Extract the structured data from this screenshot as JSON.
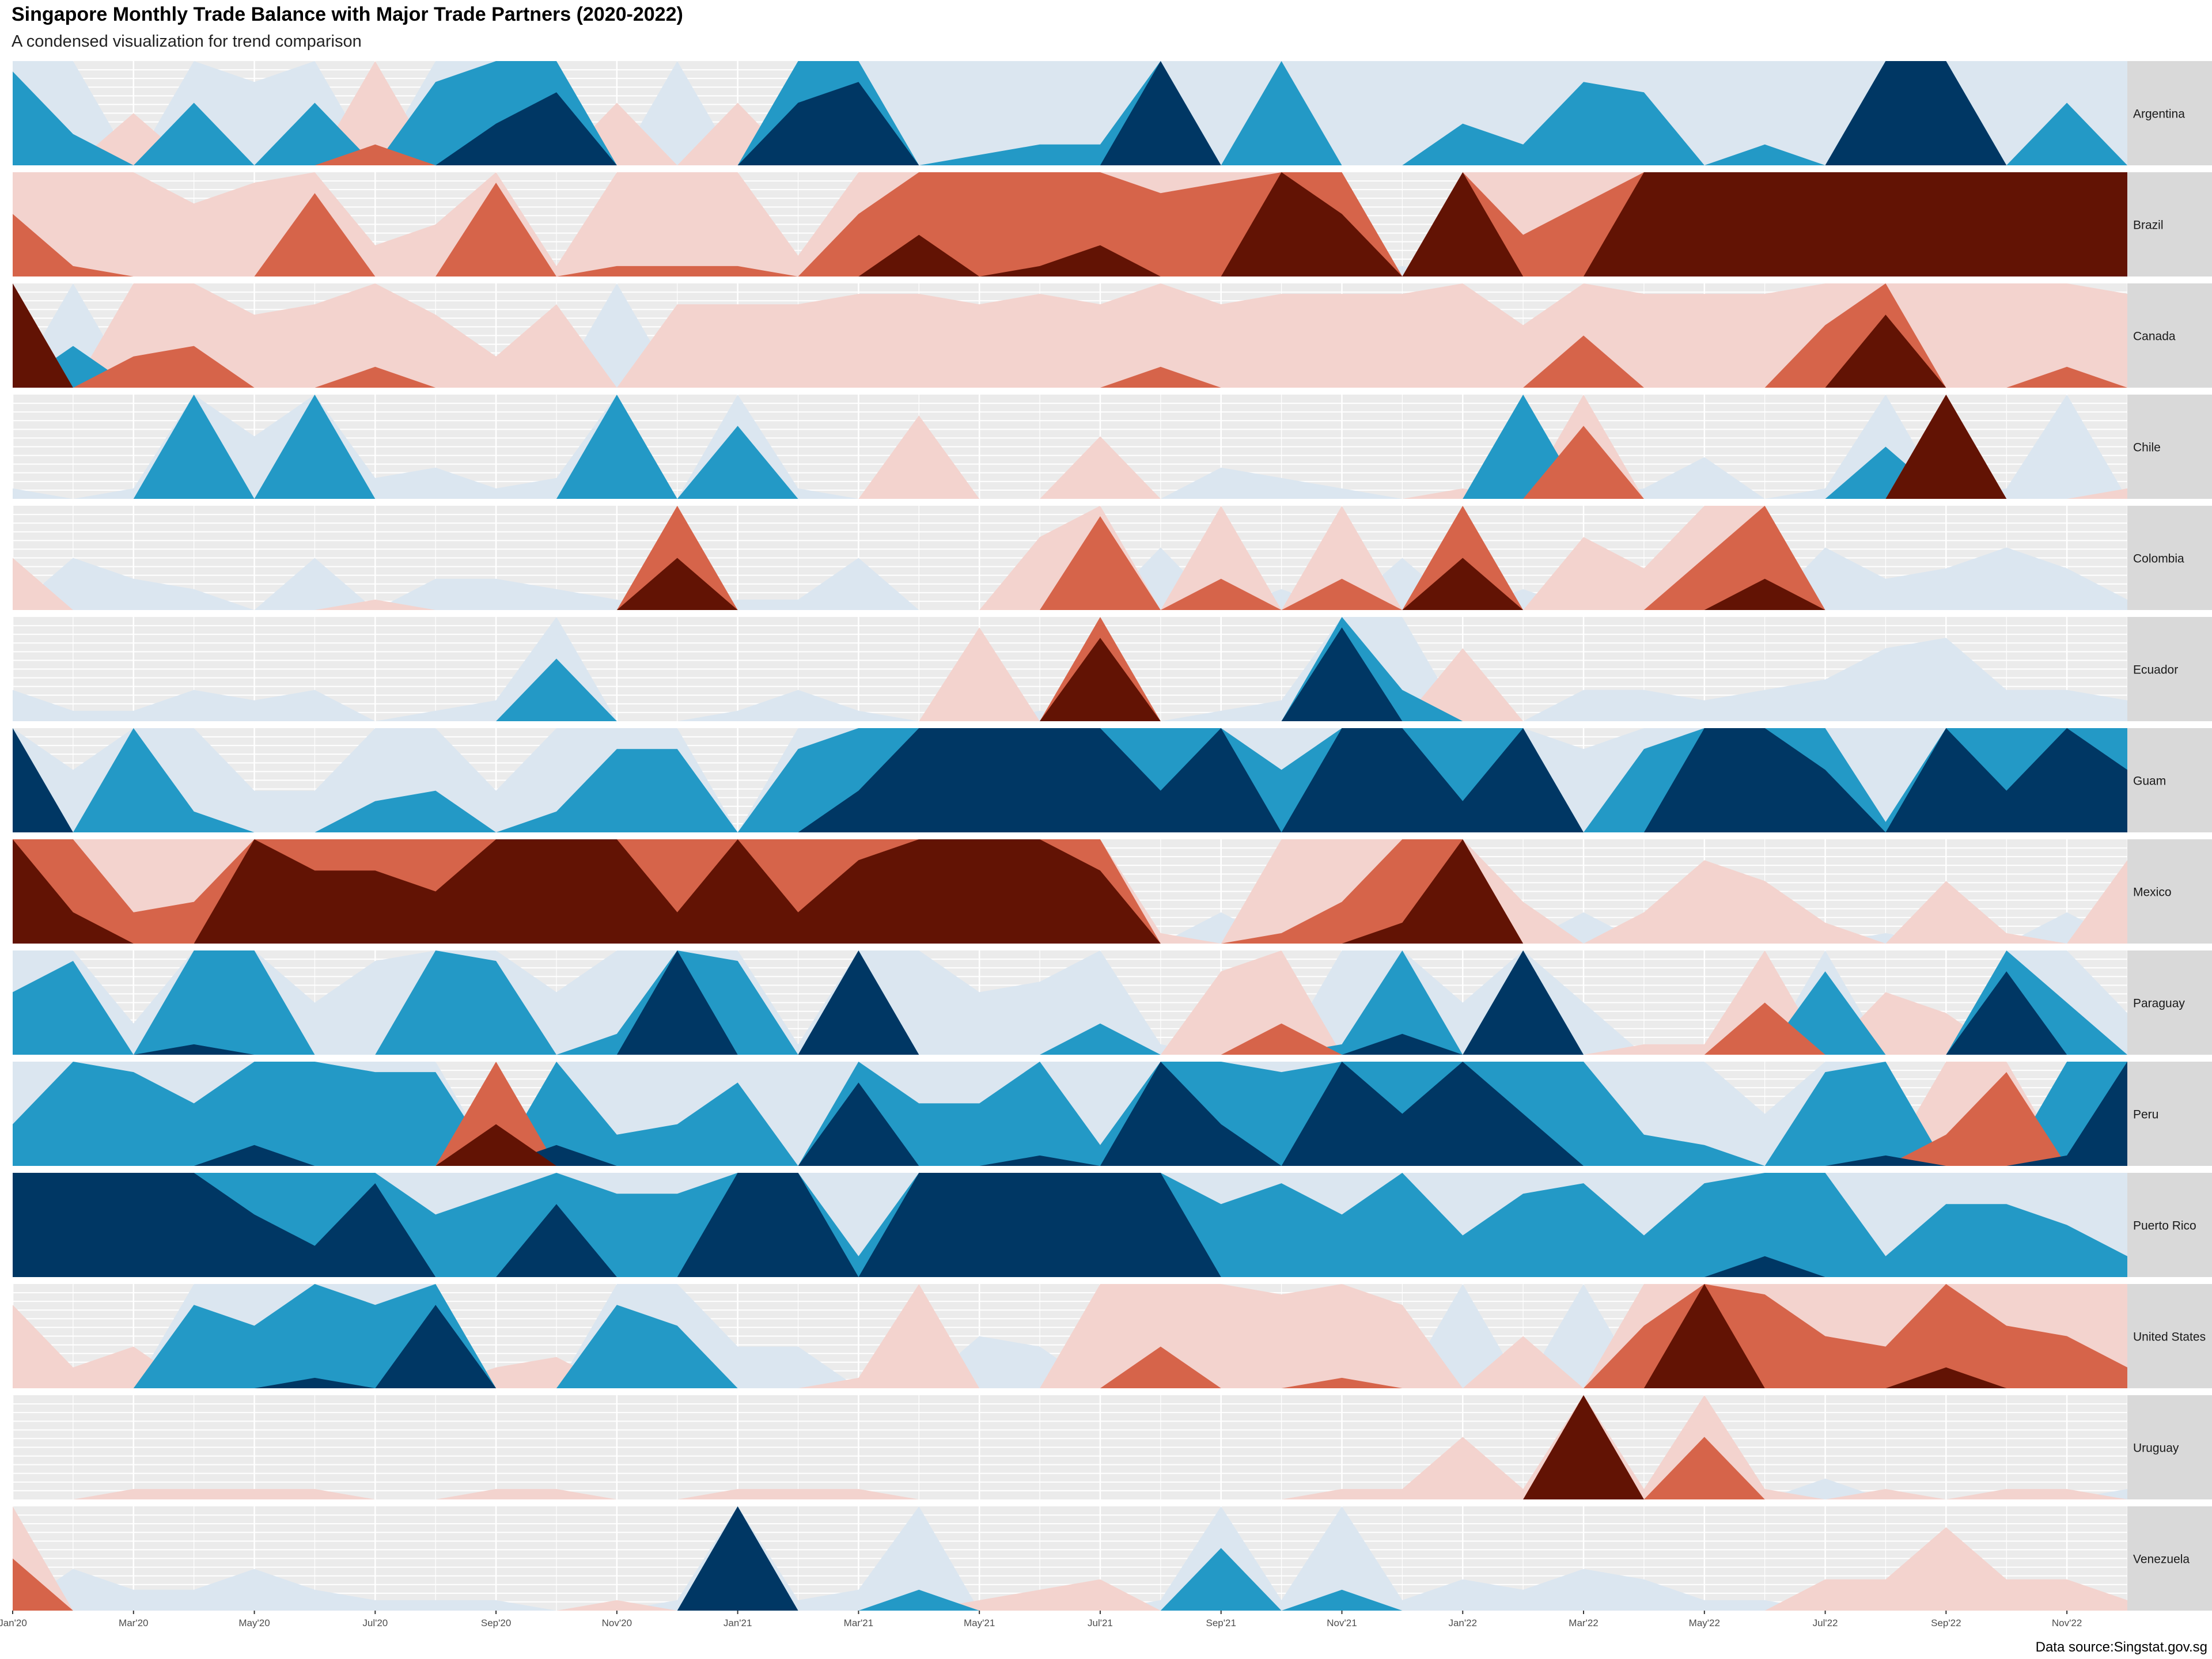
{
  "chart_data": {
    "type": "area",
    "title": "Singapore Monthly Trade Balance with Major Trade Partners (2020-2022)",
    "subtitle": "A condensed visualization for trend comparison",
    "caption": "Data source:Singstat.gov.sg",
    "chart_style": "horizon",
    "horizon_bands": 3,
    "horizon_band_size": 1,
    "colors": {
      "positive": [
        "#dbe6f0",
        "#2399c6",
        "#003764"
      ],
      "negative": [
        "#f3d3ce",
        "#d6644a",
        "#621304"
      ],
      "panel_bg": "#ebebeb",
      "grid": "#ffffff",
      "strip_bg": "#d9d9d9"
    },
    "x_ticks": [
      "Jan'20",
      "Mar'20",
      "May'20",
      "Jul'20",
      "Sep'20",
      "Nov'20",
      "Jan'21",
      "Mar'21",
      "May'21",
      "Jul'21",
      "Sep'21",
      "Nov'21",
      "Jan'22",
      "Mar'22",
      "May'22",
      "Jul'22",
      "Sep'22",
      "Nov'22"
    ],
    "months": [
      "2020-01",
      "2020-02",
      "2020-03",
      "2020-04",
      "2020-05",
      "2020-06",
      "2020-07",
      "2020-08",
      "2020-09",
      "2020-10",
      "2020-11",
      "2020-12",
      "2021-01",
      "2021-02",
      "2021-03",
      "2021-04",
      "2021-05",
      "2021-06",
      "2021-07",
      "2021-08",
      "2021-09",
      "2021-10",
      "2021-11",
      "2021-12",
      "2022-01",
      "2022-02",
      "2022-03",
      "2022-04",
      "2022-05",
      "2022-06",
      "2022-07",
      "2022-08",
      "2022-09",
      "2022-10",
      "2022-11",
      "2022-12"
    ],
    "series": [
      {
        "name": "Argentina",
        "values": [
          1.9,
          1.3,
          -0.5,
          1.6,
          0.8,
          1.6,
          -1.2,
          1.8,
          2.4,
          2.7,
          -0.6,
          1.0,
          -0.6,
          2.6,
          2.8,
          1.0,
          1.1,
          1.2,
          1.2,
          3.0,
          1.0,
          2.0,
          1.0,
          1.0,
          1.4,
          1.2,
          1.8,
          1.7,
          1.0,
          1.2,
          1.0,
          3.0,
          3.0,
          1.0,
          1.6,
          1.0
        ]
      },
      {
        "name": "Brazil",
        "values": [
          -1.6,
          -1.1,
          -1.0,
          -0.7,
          -0.9,
          -1.8,
          -0.3,
          -0.5,
          -1.9,
          -0.1,
          -1.1,
          -1.1,
          -1.1,
          -0.2,
          -1.6,
          -2.4,
          -2.0,
          -2.1,
          -2.3,
          -1.8,
          -1.9,
          -3.0,
          -2.6,
          0.1,
          -3.0,
          -1.4,
          -1.7,
          -3.0,
          -3.0,
          -3.0,
          -3.0,
          -3.0,
          -3.0,
          -3.0,
          -3.0,
          -3.0
        ]
      },
      {
        "name": "Canada",
        "values": [
          -3.0,
          1.4,
          -1.3,
          -1.4,
          -0.7,
          -0.8,
          -1.2,
          -0.7,
          -0.3,
          -0.8,
          1.0,
          -0.8,
          -0.8,
          -0.8,
          -0.9,
          -0.9,
          -0.8,
          -0.9,
          -0.8,
          -1.2,
          -0.8,
          -0.9,
          -0.9,
          -0.9,
          -1.0,
          -0.6,
          -1.5,
          -0.9,
          -0.9,
          -0.9,
          -1.6,
          -2.7,
          -1.0,
          -1.0,
          -1.2,
          -0.9
        ]
      },
      {
        "name": "Chile",
        "values": [
          0.1,
          0.0,
          0.1,
          2.0,
          0.6,
          2.0,
          0.2,
          0.3,
          0.1,
          0.2,
          2.0,
          0.0,
          1.7,
          0.1,
          0.0,
          -0.8,
          0.0,
          0.0,
          -0.6,
          0.0,
          0.3,
          0.2,
          0.1,
          0.0,
          -0.1,
          2.0,
          -1.7,
          0.1,
          0.4,
          0.0,
          0.1,
          1.5,
          -3.0,
          0.1,
          1.0,
          -0.1
        ]
      },
      {
        "name": "Colombia",
        "values": [
          -0.5,
          0.5,
          0.3,
          0.2,
          0.0,
          0.5,
          -0.1,
          0.3,
          0.3,
          0.2,
          0.1,
          -2.5,
          0.1,
          0.1,
          0.5,
          0.0,
          0.0,
          -0.7,
          -1.9,
          0.6,
          -1.3,
          0.2,
          -1.3,
          0.5,
          -2.5,
          0.2,
          -0.7,
          -0.4,
          -1.5,
          -2.3,
          0.6,
          0.3,
          0.4,
          0.6,
          0.4,
          0.1
        ]
      },
      {
        "name": "Ecuador",
        "values": [
          0.3,
          0.1,
          0.1,
          0.3,
          0.2,
          0.3,
          0.0,
          0.1,
          0.2,
          1.6,
          0.0,
          0.0,
          0.1,
          0.3,
          0.1,
          0.0,
          -0.9,
          0.1,
          -2.8,
          0.0,
          0.1,
          0.2,
          2.9,
          1.3,
          -0.7,
          0.0,
          0.3,
          0.3,
          0.2,
          0.3,
          0.4,
          0.7,
          0.8,
          0.3,
          0.3,
          0.2
        ]
      },
      {
        "name": "Guam",
        "values": [
          3.0,
          0.6,
          2.0,
          1.2,
          0.4,
          0.4,
          1.3,
          1.4,
          0.4,
          1.2,
          1.8,
          1.8,
          0.0,
          1.8,
          2.4,
          3.0,
          3.0,
          3.0,
          3.0,
          2.4,
          3.0,
          1.6,
          3.0,
          3.0,
          2.3,
          3.0,
          0.8,
          1.8,
          3.0,
          3.0,
          2.6,
          1.1,
          3.0,
          2.4,
          3.0,
          2.6
        ]
      },
      {
        "name": "Mexico",
        "values": [
          -3.0,
          -2.3,
          -1.3,
          -1.4,
          -3.0,
          -2.7,
          -2.7,
          -2.5,
          -3.0,
          -3.0,
          -3.0,
          -2.3,
          -3.0,
          -2.3,
          -2.8,
          -3.0,
          -3.0,
          -3.0,
          -2.7,
          -0.1,
          0.3,
          -1.1,
          -1.4,
          -2.2,
          -3.0,
          -0.4,
          0.3,
          -0.3,
          -0.8,
          -0.6,
          -0.2,
          0.1,
          -0.6,
          -0.1,
          0.3,
          -0.8
        ]
      },
      {
        "name": "Paraguay",
        "values": [
          1.6,
          1.9,
          0.3,
          2.1,
          2.0,
          0.5,
          0.9,
          2.0,
          1.9,
          0.6,
          1.2,
          3.0,
          1.9,
          0.1,
          3.0,
          1.0,
          0.6,
          0.7,
          1.3,
          0.1,
          -0.8,
          -1.3,
          1.1,
          2.2,
          0.5,
          3.0,
          0.5,
          -0.1,
          -0.1,
          -1.5,
          1.8,
          -0.6,
          -0.4,
          2.8,
          1.5,
          0.4
        ]
      },
      {
        "name": "Peru",
        "values": [
          1.4,
          2.0,
          1.9,
          1.6,
          2.2,
          2.0,
          1.9,
          1.9,
          -2.4,
          2.2,
          1.3,
          1.4,
          1.8,
          1.0,
          2.8,
          1.6,
          1.6,
          2.1,
          1.2,
          3.0,
          2.4,
          1.9,
          3.0,
          2.5,
          3.0,
          2.5,
          2.0,
          1.3,
          1.2,
          0.5,
          1.9,
          2.1,
          -1.3,
          -1.9,
          2.1,
          3.0
        ]
      },
      {
        "name": "Puerto Rico",
        "values": [
          3.0,
          3.0,
          3.0,
          3.0,
          2.6,
          2.3,
          2.9,
          1.6,
          1.8,
          2.7,
          1.8,
          1.8,
          3.0,
          3.0,
          1.2,
          3.0,
          3.0,
          3.0,
          3.0,
          3.0,
          1.7,
          1.9,
          1.6,
          2.0,
          1.4,
          1.8,
          1.9,
          1.4,
          1.9,
          2.2,
          2.0,
          1.2,
          1.7,
          1.7,
          1.5,
          1.2
        ]
      },
      {
        "name": "United States",
        "values": [
          -0.8,
          -0.2,
          -0.4,
          1.8,
          1.6,
          2.1,
          1.8,
          2.8,
          -0.2,
          -0.3,
          1.8,
          1.6,
          0.4,
          0.4,
          -0.1,
          -1.0,
          0.5,
          0.4,
          -1.0,
          -1.4,
          -1.0,
          -0.9,
          -1.1,
          -0.8,
          1.0,
          -0.5,
          1.0,
          -1.6,
          -3.0,
          -1.9,
          -1.5,
          -1.4,
          -2.2,
          -1.6,
          -1.5,
          -1.2
        ]
      },
      {
        "name": "Uruguay",
        "values": [
          0.0,
          0.0,
          -0.1,
          -0.1,
          -0.1,
          -0.1,
          0.0,
          0.0,
          -0.1,
          -0.1,
          0.0,
          0.0,
          -0.1,
          -0.1,
          -0.1,
          0.0,
          0.0,
          0.0,
          0.0,
          0.0,
          0.0,
          0.0,
          -0.1,
          -0.1,
          -0.6,
          -0.1,
          -3.0,
          -0.1,
          -1.6,
          -0.1,
          0.2,
          -0.1,
          0.0,
          -0.1,
          -0.1,
          0.1
        ]
      },
      {
        "name": "Venezuela",
        "values": [
          -1.5,
          0.4,
          0.2,
          0.2,
          0.4,
          0.2,
          0.1,
          0.1,
          0.1,
          0.0,
          -0.1,
          0.1,
          3.0,
          0.1,
          0.2,
          1.2,
          -0.1,
          -0.2,
          -0.3,
          0.1,
          1.6,
          0.1,
          1.2,
          0.1,
          0.3,
          0.2,
          0.4,
          0.3,
          0.1,
          0.1,
          -0.3,
          -0.3,
          -0.8,
          -0.3,
          -0.3,
          -0.1
        ]
      }
    ]
  }
}
